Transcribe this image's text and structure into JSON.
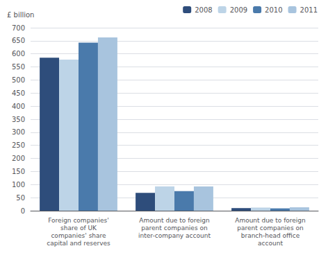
{
  "chart_data": {
    "type": "bar",
    "ylabel": "£ billion",
    "categories": [
      "Foreign companies'\nshare of UK\ncompanies' share\ncapital and reserves",
      "Amount due to foreign\nparent companies on\ninter-company account",
      "Amount due to foreign\nparent companies on\nbranch-head office\naccount"
    ],
    "series": [
      {
        "name": "2008",
        "color": "#2E4D7B",
        "values": [
          585,
          68,
          10
        ]
      },
      {
        "name": "2009",
        "color": "#BDD4E7",
        "values": [
          578,
          93,
          12
        ]
      },
      {
        "name": "2010",
        "color": "#4A7AAB",
        "values": [
          643,
          75,
          9
        ]
      },
      {
        "name": "2011",
        "color": "#A8C4DE",
        "values": [
          663,
          93,
          13
        ]
      }
    ],
    "ylim": [
      0,
      700
    ],
    "yticks": [
      0,
      50,
      100,
      150,
      200,
      250,
      300,
      350,
      400,
      450,
      500,
      550,
      600,
      650,
      700
    ],
    "grid": true,
    "legend": "upper right"
  }
}
